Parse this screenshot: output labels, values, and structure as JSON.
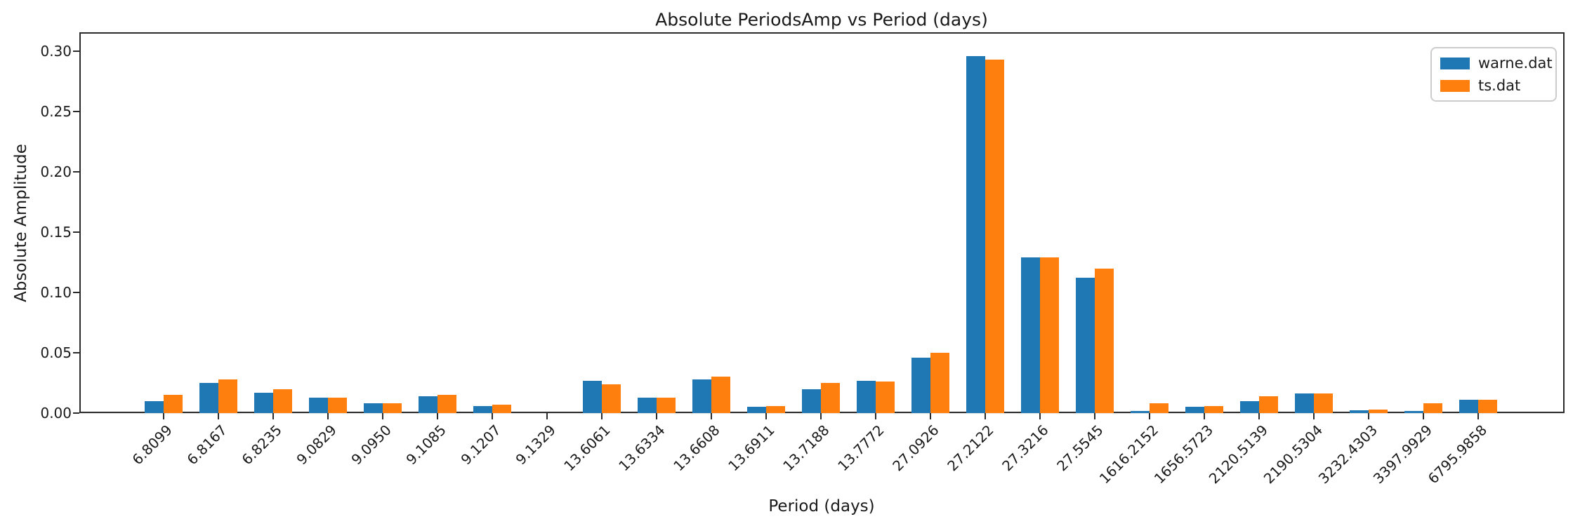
{
  "chart_data": {
    "type": "bar",
    "title": "Absolute PeriodsAmp vs Period (days)",
    "xlabel": "Period (days)",
    "ylabel": "Absolute Amplitude",
    "categories": [
      "6.8099",
      "6.8167",
      "6.8235",
      "9.0829",
      "9.0950",
      "9.1085",
      "9.1207",
      "9.1329",
      "13.6061",
      "13.6334",
      "13.6608",
      "13.6911",
      "13.7188",
      "13.7772",
      "27.0926",
      "27.2122",
      "27.3216",
      "27.5545",
      "1616.2152",
      "1656.5723",
      "2120.5139",
      "2190.5304",
      "3232.4303",
      "3397.9929",
      "6795.9858"
    ],
    "series": [
      {
        "name": "warne.dat",
        "color": "#1f77b4",
        "values": [
          0.01,
          0.025,
          0.017,
          0.013,
          0.008,
          0.014,
          0.006,
          0.0,
          0.027,
          0.013,
          0.028,
          0.005,
          0.02,
          0.027,
          0.046,
          0.296,
          0.129,
          0.112,
          0.002,
          0.005,
          0.01,
          0.016,
          0.0025,
          0.002,
          0.011
        ]
      },
      {
        "name": "ts.dat",
        "color": "#ff7f0e",
        "values": [
          0.015,
          0.028,
          0.02,
          0.013,
          0.008,
          0.015,
          0.007,
          0.0,
          0.024,
          0.013,
          0.03,
          0.006,
          0.025,
          0.026,
          0.05,
          0.293,
          0.129,
          0.12,
          0.008,
          0.006,
          0.014,
          0.016,
          0.003,
          0.008,
          0.011
        ]
      }
    ],
    "ylim": [
      0,
      0.3157
    ],
    "yticks": [
      0.0,
      0.05,
      0.1,
      0.15,
      0.2,
      0.25,
      0.3
    ],
    "ytick_labels": [
      "0.00",
      "0.05",
      "0.10",
      "0.15",
      "0.20",
      "0.25",
      "0.30"
    ],
    "grid": "horizontal",
    "grid_color": "#e8e8e8",
    "legend_position": "upper right",
    "x_tick_rotation": 45
  }
}
